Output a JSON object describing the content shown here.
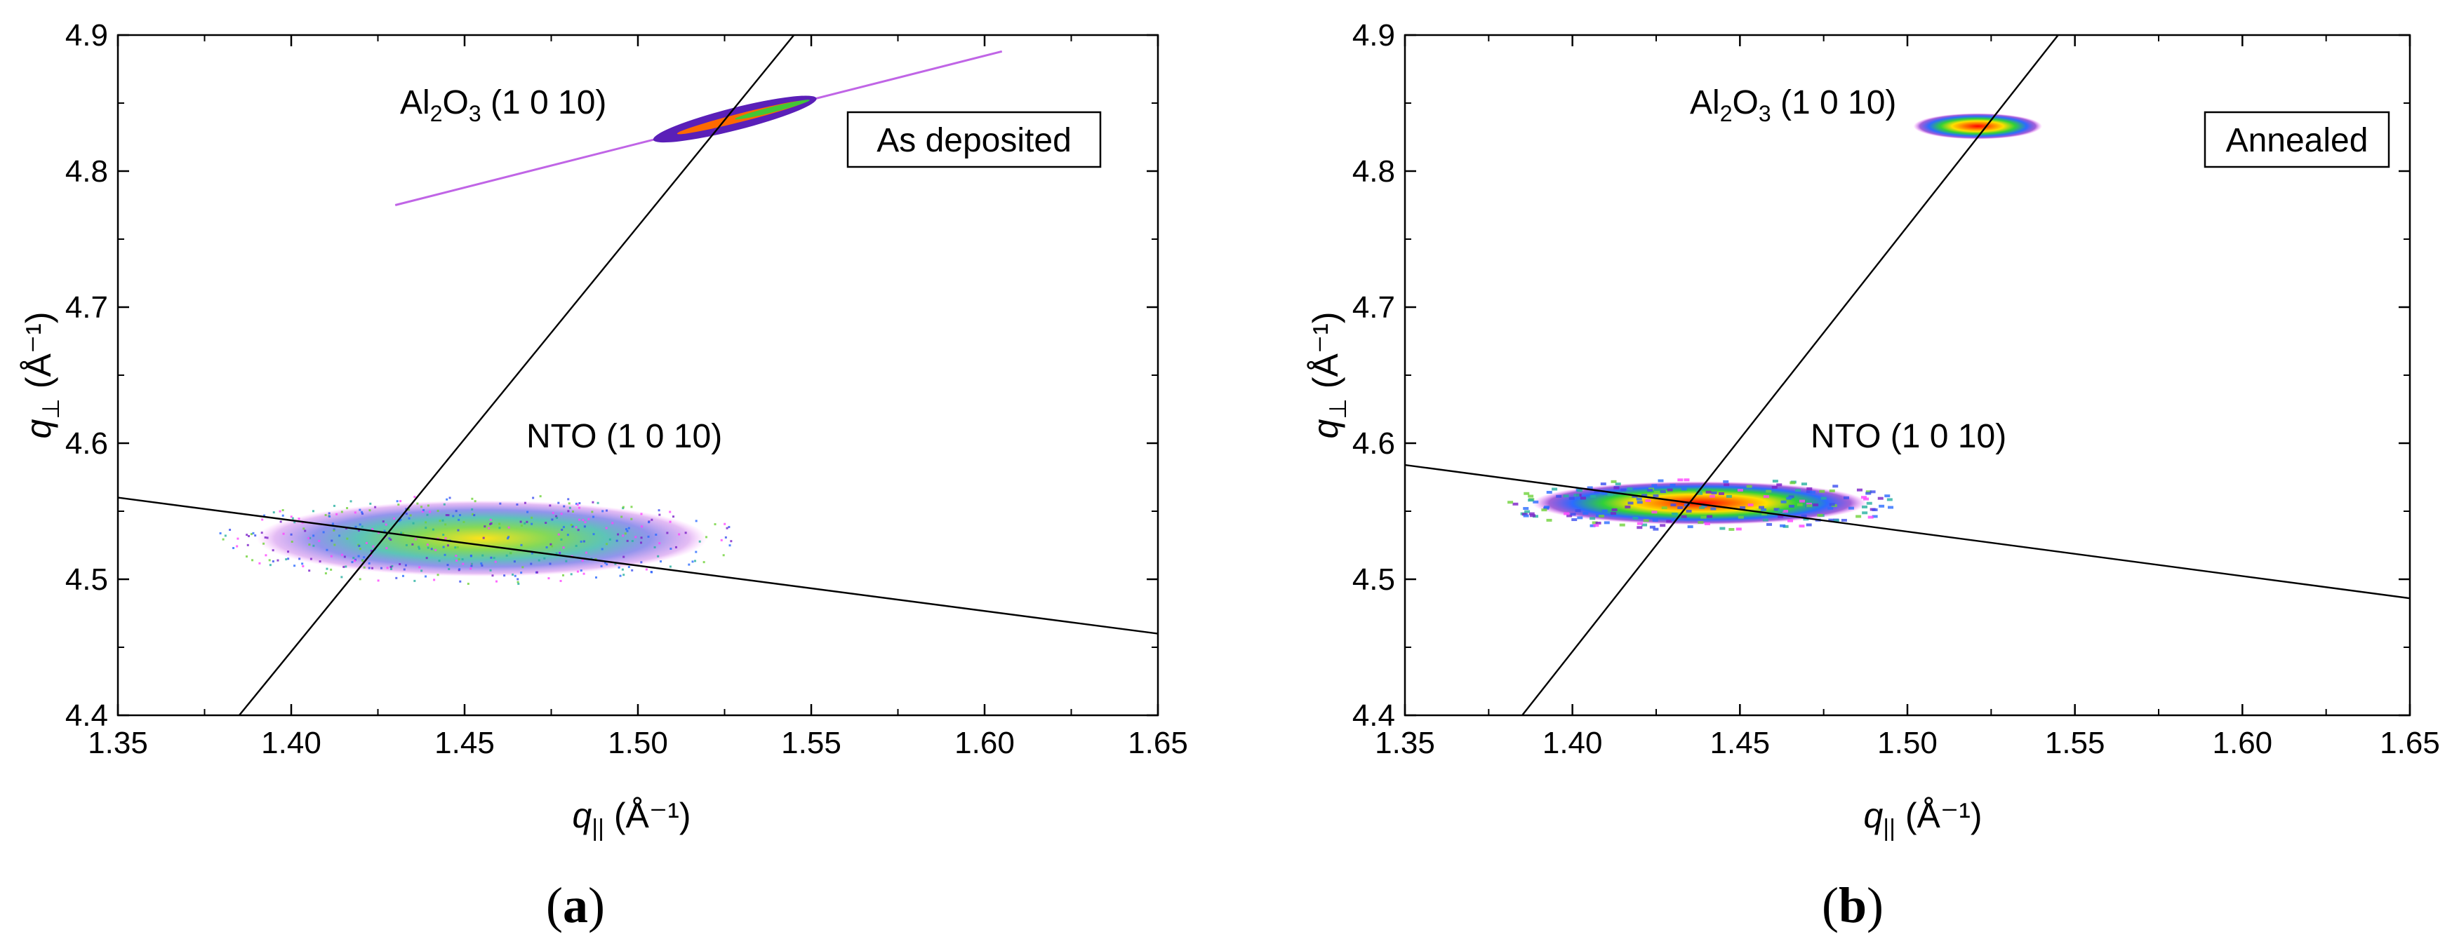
{
  "chart_data": [
    {
      "type": "heatmap",
      "panel_label_open": "(",
      "panel_label_letter": "a",
      "panel_label_close": ")",
      "xlabel_symbol": "q",
      "xlabel_sub": "||",
      "xlabel_unit": " (Å⁻¹)",
      "ylabel_symbol": "q",
      "ylabel_sub": "⊥",
      "ylabel_unit": " (Å⁻¹)",
      "xlim": [
        1.35,
        1.65
      ],
      "ylim": [
        4.4,
        4.9
      ],
      "x_ticks": [
        "1.35",
        "1.40",
        "1.45",
        "1.50",
        "1.55",
        "1.60",
        "1.65"
      ],
      "y_ticks": [
        "4.4",
        "4.5",
        "4.6",
        "4.7",
        "4.8",
        "4.9"
      ],
      "legend_box": "As deposited",
      "annotations": {
        "substrate_a": "Al",
        "substrate_sub1": "2",
        "substrate_b": "O",
        "substrate_sub2": "3",
        "substrate_hkl": " (1 0 10)",
        "film": "NTO (1 0 10)"
      },
      "lines": [
        {
          "name": "relaxation-line",
          "x1": 1.385,
          "y1": 4.4,
          "x2": 1.545,
          "y2": 4.9
        },
        {
          "name": "radial-line",
          "x1": 1.35,
          "y1": 4.56,
          "x2": 1.65,
          "y2": 4.46
        }
      ],
      "peaks": [
        {
          "name": "substrate-peak",
          "type": "streak",
          "cx": 1.528,
          "cy": 4.838,
          "x_start": 1.43,
          "y_start": 4.775,
          "x_end": 1.605,
          "y_end": 4.888
        },
        {
          "name": "film-peak",
          "type": "ellipse",
          "cx": 1.455,
          "cy": 4.53,
          "rx": 0.065,
          "ry": 0.028
        }
      ]
    },
    {
      "type": "heatmap",
      "panel_label_open": "(",
      "panel_label_letter": "b",
      "panel_label_close": ")",
      "xlabel_symbol": "q",
      "xlabel_sub": "||",
      "xlabel_unit": " (Å⁻¹)",
      "ylabel_symbol": "q",
      "ylabel_sub": "⊥",
      "ylabel_unit": " (Å⁻¹)",
      "xlim": [
        1.35,
        1.65
      ],
      "ylim": [
        4.4,
        4.9
      ],
      "x_ticks": [
        "1.35",
        "1.40",
        "1.45",
        "1.50",
        "1.55",
        "1.60",
        "1.65"
      ],
      "y_ticks": [
        "4.4",
        "4.5",
        "4.6",
        "4.7",
        "4.8",
        "4.9"
      ],
      "legend_box": "Annealed",
      "annotations": {
        "substrate_a": "Al",
        "substrate_sub1": "2",
        "substrate_b": "O",
        "substrate_sub2": "3",
        "substrate_hkl": " (1 0 10)",
        "film": "NTO (1 0 10)"
      },
      "lines": [
        {
          "name": "relaxation-line",
          "x1": 1.385,
          "y1": 4.4,
          "x2": 1.545,
          "y2": 4.9
        },
        {
          "name": "radial-line",
          "x1": 1.35,
          "y1": 4.584,
          "x2": 1.65,
          "y2": 4.486
        }
      ],
      "peaks": [
        {
          "name": "substrate-peak",
          "type": "spot",
          "cx": 1.521,
          "cy": 4.833,
          "rx": 0.006,
          "ry": 0.012
        },
        {
          "name": "film-peak",
          "type": "ellipse",
          "cx": 1.438,
          "cy": 4.556,
          "rx": 0.05,
          "ry": 0.016
        }
      ]
    }
  ]
}
